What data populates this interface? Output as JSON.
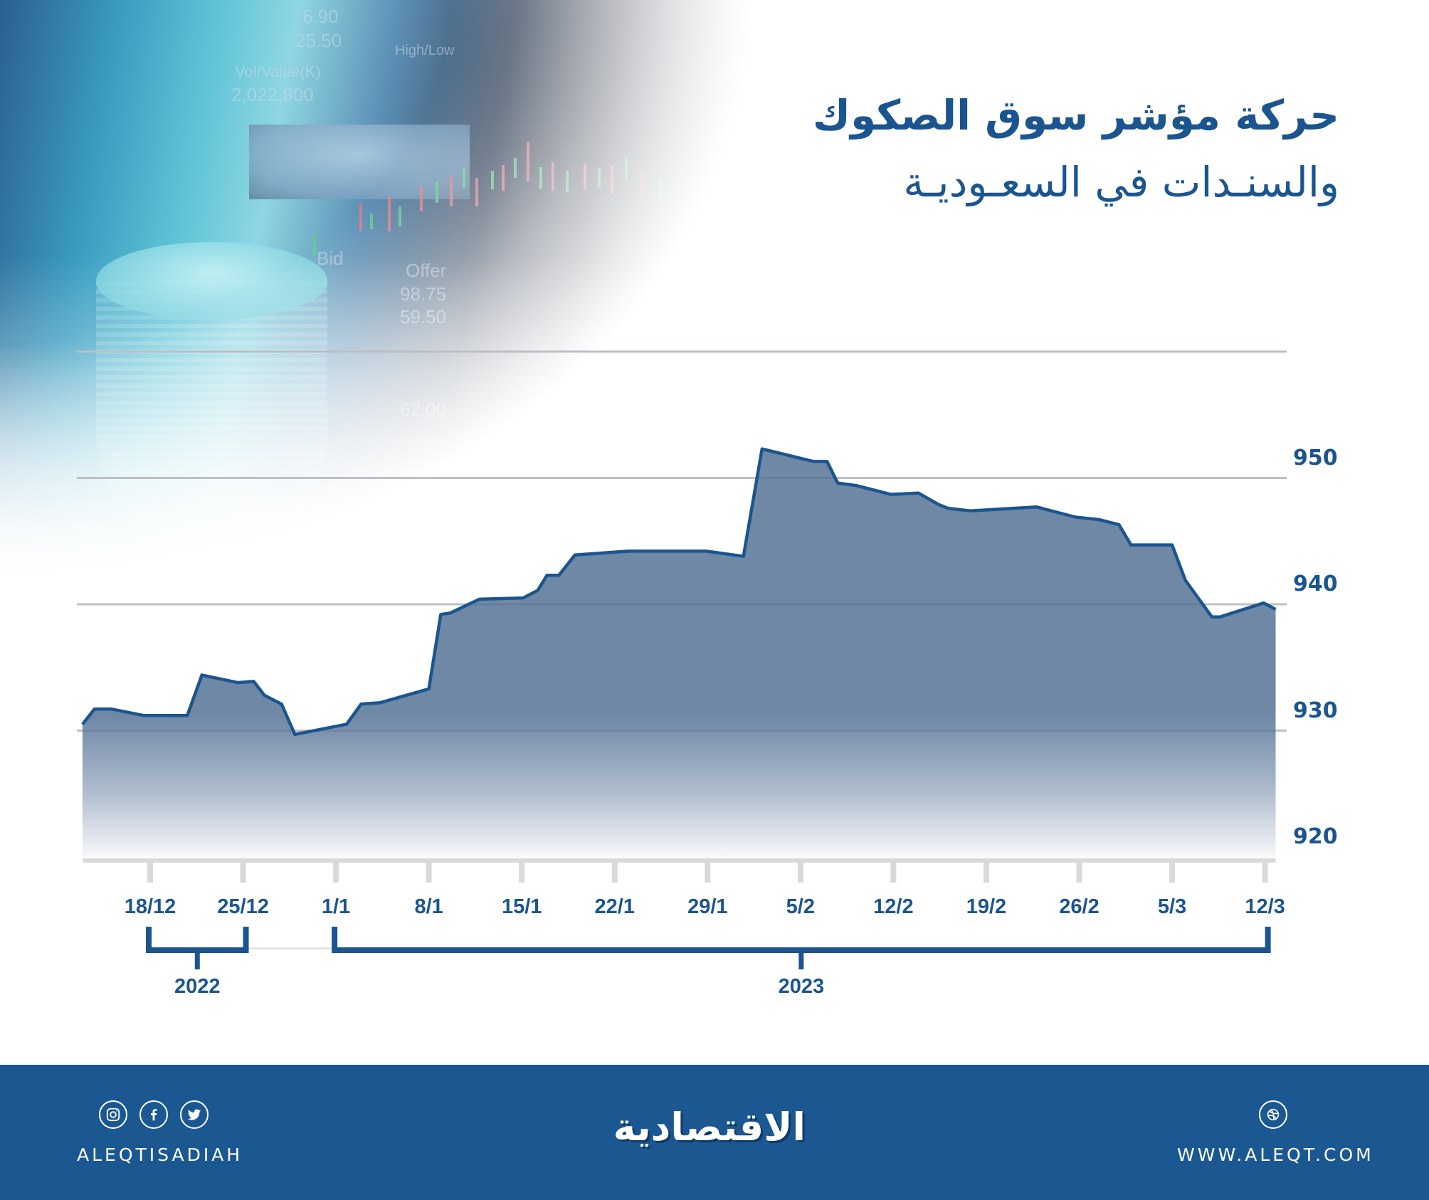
{
  "header": {
    "title_line1": "حركة مؤشر سوق الصكوك",
    "title_line2": "والسنـدات في السعـوديـة"
  },
  "background": {
    "ticker_texts": [
      "6.90",
      "25.50",
      "Vol/Value(K)",
      "2,022,800",
      "Bid",
      "Offer",
      "98.75",
      "59.50",
      "62.00",
      "High/Low"
    ]
  },
  "chart_data": {
    "type": "area",
    "title": "حركة مؤشر سوق الصكوك والسندات في السعودية",
    "xlabel": "",
    "ylabel": "",
    "x_unit": "days since 18/12/2022",
    "ylim": [
      920,
      960
    ],
    "yticks": [
      920,
      930,
      940,
      950,
      960
    ],
    "ytick_labels": [
      "920",
      "930",
      "940",
      "950"
    ],
    "grid": true,
    "y_axis_position": "right",
    "xticks": [
      {
        "day": 0,
        "label": "18/12"
      },
      {
        "day": 7,
        "label": "25/12"
      },
      {
        "day": 14,
        "label": "1/1"
      },
      {
        "day": 21,
        "label": "8/1"
      },
      {
        "day": 28,
        "label": "15/1"
      },
      {
        "day": 35,
        "label": "22/1"
      },
      {
        "day": 42,
        "label": "29/1"
      },
      {
        "day": 49,
        "label": "5/2"
      },
      {
        "day": 56,
        "label": "12/2"
      },
      {
        "day": 63,
        "label": "19/2"
      },
      {
        "day": 70,
        "label": "26/2"
      },
      {
        "day": 77,
        "label": "5/3"
      },
      {
        "day": 84,
        "label": "12/3"
      }
    ],
    "year_groups": [
      {
        "label": "2022",
        "from_day": 0,
        "to_day": 7
      },
      {
        "label": "2023",
        "from_day": 14,
        "to_day": 84
      }
    ],
    "x": [
      -5.1,
      -4.2,
      -2.9,
      -0.5,
      2.8,
      3.9,
      6.6,
      7.8,
      8.6,
      9.9,
      10.9,
      14.8,
      15.9,
      17.3,
      21.0,
      21.9,
      22.6,
      24.8,
      28.1,
      29.2,
      29.9,
      30.8,
      32.0,
      36.0,
      41.9,
      44.7,
      46.1,
      50.0,
      51.0,
      51.8,
      53.2,
      55.8,
      57.9,
      59.4,
      60.1,
      61.8,
      66.8,
      69.7,
      71.5,
      73.0,
      73.9,
      77.0,
      78.0,
      80.0,
      80.6,
      83.9,
      84.8
    ],
    "series": [
      {
        "name": "مؤشر سوق الصكوك والسندات",
        "values": [
          930.5,
          931.7,
          931.7,
          931.2,
          931.2,
          934.4,
          933.8,
          933.9,
          932.8,
          932.1,
          929.7,
          930.5,
          932.1,
          932.2,
          933.3,
          939.2,
          939.3,
          940.4,
          940.5,
          941.1,
          942.3,
          942.3,
          943.9,
          944.2,
          944.2,
          943.8,
          952.3,
          951.3,
          951.3,
          949.6,
          949.4,
          948.7,
          948.8,
          947.9,
          947.6,
          947.4,
          947.7,
          946.9,
          946.7,
          946.3,
          944.7,
          944.7,
          941.9,
          939.0,
          939.0,
          940.1,
          939.6
        ]
      }
    ],
    "colors": {
      "line": "#1b5590",
      "fill_top": "#6f88a6",
      "fill_bottom": "#f7f8fa",
      "grid": "#d8d8d8",
      "axis": "#d9d9d9",
      "labels": "#1b5590"
    }
  },
  "footer": {
    "social_handle": "ALEQTISADIAH",
    "social_icons": [
      "instagram-icon",
      "facebook-icon",
      "twitter-icon"
    ],
    "logo_text": "الاقتصادية",
    "website": "WWW.ALEQT.COM",
    "website_icon": "globe-icon",
    "background_color": "#1b5892"
  }
}
